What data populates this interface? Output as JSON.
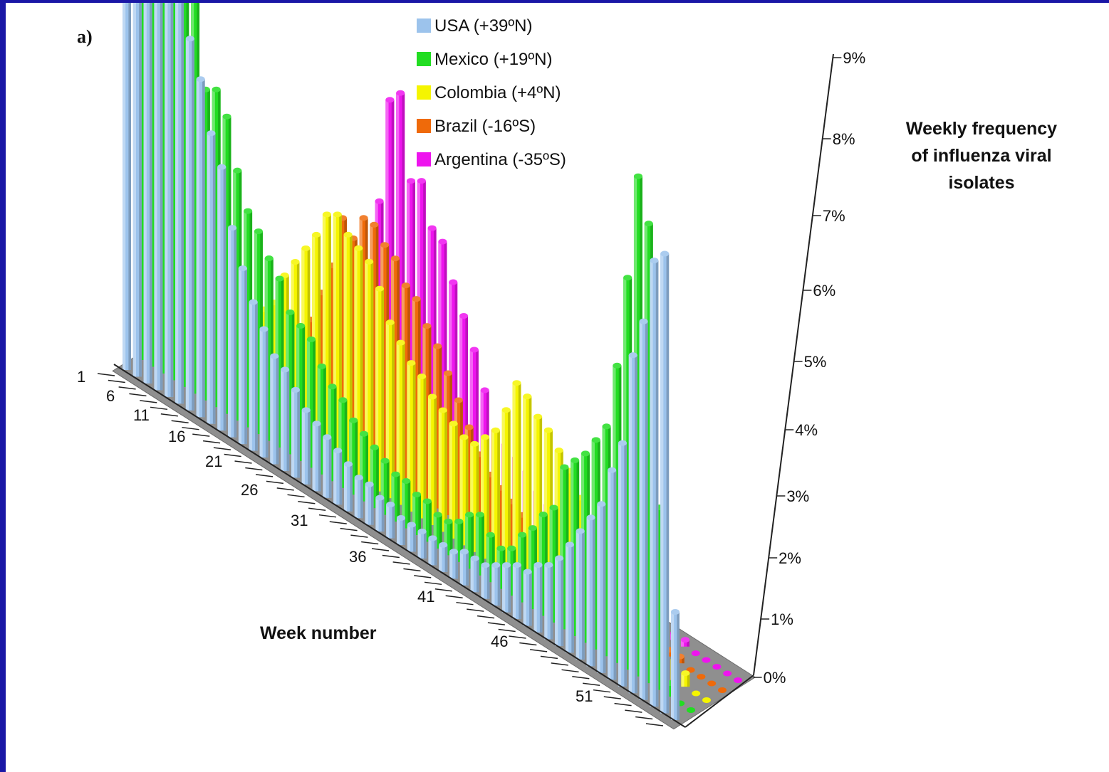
{
  "panel_label": "a)",
  "chart_data": {
    "type": "bar",
    "subtype": "3d-grouped-bar",
    "title": "",
    "xlabel": "Week number",
    "ylabel": "Weekly frequency of influenza viral isolates",
    "x_ticks": [
      "1",
      "6",
      "11",
      "16",
      "21",
      "26",
      "31",
      "36",
      "41",
      "46",
      "51"
    ],
    "y_ticks": [
      "0%",
      "1%",
      "2%",
      "3%",
      "4%",
      "5%",
      "6%",
      "7%",
      "8%",
      "9%"
    ],
    "ylim": [
      0,
      9
    ],
    "y_unit": "%",
    "grid": false,
    "legend_position": "top-center",
    "weeks": [
      1,
      2,
      3,
      4,
      5,
      6,
      7,
      8,
      9,
      10,
      11,
      12,
      13,
      14,
      15,
      16,
      17,
      18,
      19,
      20,
      21,
      22,
      23,
      24,
      25,
      26,
      27,
      28,
      29,
      30,
      31,
      32,
      33,
      34,
      35,
      36,
      37,
      38,
      39,
      40,
      41,
      42,
      43,
      44,
      45,
      46,
      47,
      48,
      49,
      50,
      51,
      52,
      53
    ],
    "series": [
      {
        "name": "USA (+39ºN)",
        "color": "#9cc3ec",
        "values": [
          7.9,
          7.5,
          7.9,
          7.7,
          7.3,
          6.6,
          5.5,
          5.0,
          4.3,
          3.9,
          3.1,
          2.6,
          2.2,
          1.9,
          1.6,
          1.5,
          1.3,
          1.1,
          1.0,
          0.9,
          0.8,
          0.7,
          0.6,
          0.6,
          0.5,
          0.5,
          0.4,
          0.4,
          0.4,
          0.4,
          0.4,
          0.4,
          0.5,
          0.5,
          0.5,
          0.6,
          0.7,
          0.8,
          0.8,
          1.0,
          1.1,
          1.3,
          1.6,
          1.9,
          2.2,
          2.5,
          3.1,
          3.6,
          5.0,
          5.6,
          6.6,
          6.8,
          1.6
        ]
      },
      {
        "name": "Mexico (+19ºN)",
        "color": "#22dd22",
        "values": [
          8.2,
          7.6,
          7.0,
          6.4,
          6.1,
          6.0,
          4.6,
          4.7,
          4.4,
          3.7,
          3.2,
          3.0,
          2.7,
          2.5,
          2.1,
          2.0,
          1.9,
          1.6,
          1.4,
          1.3,
          1.1,
          1.0,
          0.9,
          0.8,
          0.7,
          0.7,
          0.6,
          0.6,
          0.5,
          0.5,
          0.6,
          0.8,
          0.9,
          0.7,
          0.6,
          0.7,
          1.0,
          1.2,
          1.5,
          1.7,
          2.4,
          2.6,
          2.8,
          3.1,
          3.4,
          4.4,
          5.8,
          7.4,
          6.8,
          2.7,
          0.2,
          0.0,
          0.0
        ]
      },
      {
        "name": "Colombia (+4ºN)",
        "color": "#f5f500",
        "values": [
          0.0,
          0.0,
          0.0,
          0.0,
          0.0,
          0.0,
          0.0,
          0.1,
          0.5,
          0.9,
          1.6,
          1.8,
          2.3,
          2.6,
          2.9,
          3.2,
          3.6,
          3.7,
          3.5,
          3.4,
          3.3,
          3.0,
          2.6,
          2.4,
          2.2,
          2.1,
          1.9,
          1.8,
          1.7,
          1.6,
          1.6,
          1.8,
          2.0,
          2.4,
          2.9,
          2.8,
          2.6,
          2.5,
          2.3,
          2.1,
          1.8,
          1.6,
          1.4,
          1.2,
          1.0,
          0.9,
          0.8,
          0.6,
          0.5,
          0.3,
          0.2,
          0.0,
          0.0
        ]
      },
      {
        "name": "Brazil (-16ºS)",
        "color": "#ef6a0a",
        "values": [
          0.0,
          0.0,
          0.0,
          0.0,
          0.0,
          0.0,
          0.0,
          0.0,
          0.0,
          0.1,
          0.5,
          1.0,
          1.3,
          1.6,
          2.1,
          2.6,
          3.4,
          3.2,
          3.6,
          3.6,
          3.4,
          3.3,
          3.0,
          2.9,
          2.6,
          2.4,
          2.1,
          1.8,
          1.5,
          1.2,
          1.0,
          0.9,
          0.8,
          0.7,
          0.6,
          0.5,
          0.5,
          0.4,
          0.3,
          0.3,
          0.2,
          0.2,
          0.2,
          0.1,
          0.1,
          0.1,
          0.1,
          0.1,
          0.1,
          0.0,
          0.0,
          0.0,
          0.0
        ]
      },
      {
        "name": "Argentina (-35ºS)",
        "color": "#ee14ee",
        "values": [
          0.0,
          0.0,
          0.0,
          0.0,
          0.0,
          0.0,
          0.0,
          0.0,
          0.0,
          0.0,
          0.0,
          0.0,
          0.0,
          0.1,
          0.3,
          0.6,
          1.4,
          2.3,
          3.7,
          5.3,
          5.5,
          4.3,
          4.4,
          3.8,
          3.7,
          3.2,
          2.8,
          2.4,
          1.9,
          1.4,
          1.3,
          1.2,
          1.1,
          0.9,
          0.8,
          0.7,
          0.6,
          0.5,
          0.4,
          0.3,
          0.3,
          0.2,
          0.2,
          0.1,
          0.1,
          0.1,
          0.1,
          0.1,
          0.0,
          0.0,
          0.0,
          0.0,
          0.0
        ]
      }
    ]
  }
}
